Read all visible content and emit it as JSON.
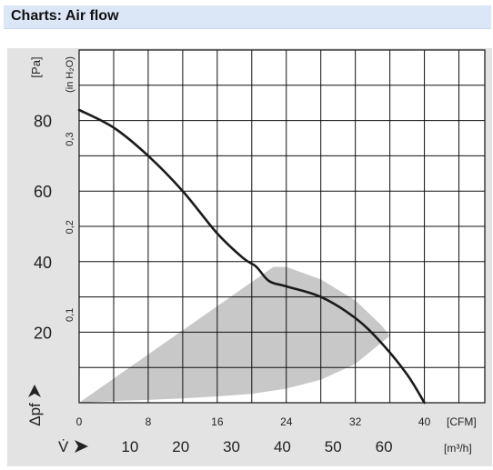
{
  "header": {
    "title": "Charts: Air flow"
  },
  "chart_data": {
    "type": "line",
    "title": "",
    "left_axis": {
      "unit": "[Pa]",
      "symbol": "Δpf",
      "ticks": [
        "80",
        "60",
        "40",
        "20"
      ],
      "tick_values": [
        80,
        60,
        40,
        20
      ],
      "range": [
        0,
        100
      ]
    },
    "inner_left_axis": {
      "unit": "(in H₂O)",
      "ticks": [
        "0,3",
        "0,2",
        "0,1"
      ],
      "tick_values": [
        0.3,
        0.2,
        0.1
      ]
    },
    "bottom_axis_cfm": {
      "unit": "[CFM]",
      "ticks": [
        "0",
        "8",
        "16",
        "24",
        "32",
        "40"
      ],
      "tick_values": [
        0,
        8,
        16,
        24,
        32,
        40
      ],
      "range": [
        0,
        47
      ]
    },
    "bottom_axis_m3h": {
      "unit": "[m³/h]",
      "symbol": "V̇",
      "ticks": [
        "10",
        "20",
        "30",
        "40",
        "50",
        "60"
      ],
      "tick_values": [
        10,
        20,
        30,
        40,
        50,
        60
      ]
    },
    "grid": true,
    "series": [
      {
        "x": [
          0,
          4,
          8,
          12,
          16,
          19,
          20.5,
          22,
          24,
          28,
          32,
          35,
          38,
          40
        ],
        "y": [
          83,
          78,
          70,
          60,
          48,
          41,
          38.6,
          34.5,
          33,
          30,
          24,
          17,
          8,
          0
        ]
      }
    ],
    "operating_region": {
      "x": [
        0,
        4,
        8,
        12,
        16,
        20,
        22.5,
        22,
        20,
        17,
        15,
        12,
        9,
        5,
        0,
        4,
        8,
        12,
        16,
        20,
        24,
        28,
        32,
        36,
        35,
        32,
        28,
        24,
        22.5
      ],
      "y": [
        0,
        1.5,
        3.5,
        6.5,
        11,
        18,
        27,
        28.5,
        29,
        25,
        22,
        18,
        14,
        7,
        0,
        0.5,
        0.8,
        1.2,
        1.8,
        2.5,
        4,
        6.5,
        11,
        19,
        22,
        29,
        35,
        38.5,
        38.5
      ]
    },
    "colors": {
      "curve": "#1a1a1a",
      "region": "#c8c8c8",
      "grid": "#111111",
      "frame": "#e3e3e3",
      "plot_bg": "#ffffff"
    }
  }
}
